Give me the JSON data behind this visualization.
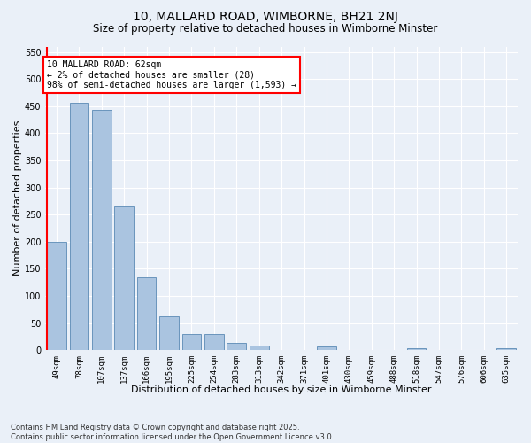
{
  "title1": "10, MALLARD ROAD, WIMBORNE, BH21 2NJ",
  "title2": "Size of property relative to detached houses in Wimborne Minster",
  "xlabel": "Distribution of detached houses by size in Wimborne Minster",
  "ylabel": "Number of detached properties",
  "categories": [
    "49sqm",
    "78sqm",
    "107sqm",
    "137sqm",
    "166sqm",
    "195sqm",
    "225sqm",
    "254sqm",
    "283sqm",
    "313sqm",
    "342sqm",
    "371sqm",
    "401sqm",
    "430sqm",
    "459sqm",
    "488sqm",
    "518sqm",
    "547sqm",
    "576sqm",
    "606sqm",
    "635sqm"
  ],
  "values": [
    200,
    457,
    443,
    265,
    135,
    62,
    30,
    30,
    14,
    8,
    0,
    0,
    7,
    0,
    0,
    0,
    4,
    0,
    0,
    0,
    4
  ],
  "bar_color": "#aac4e0",
  "bar_edge_color": "#5a8ab5",
  "vline_color": "red",
  "annotation_text": "10 MALLARD ROAD: 62sqm\n← 2% of detached houses are smaller (28)\n98% of semi-detached houses are larger (1,593) →",
  "annotation_box_color": "white",
  "annotation_box_edge_color": "red",
  "ylim": [
    0,
    560
  ],
  "yticks": [
    0,
    50,
    100,
    150,
    200,
    250,
    300,
    350,
    400,
    450,
    500,
    550
  ],
  "background_color": "#eaf0f8",
  "grid_color": "#ffffff",
  "footer1": "Contains HM Land Registry data © Crown copyright and database right 2025.",
  "footer2": "Contains public sector information licensed under the Open Government Licence v3.0.",
  "title1_fontsize": 10,
  "title2_fontsize": 8.5,
  "tick_fontsize": 6.5,
  "label_fontsize": 8,
  "footer_fontsize": 6,
  "annotation_fontsize": 7
}
